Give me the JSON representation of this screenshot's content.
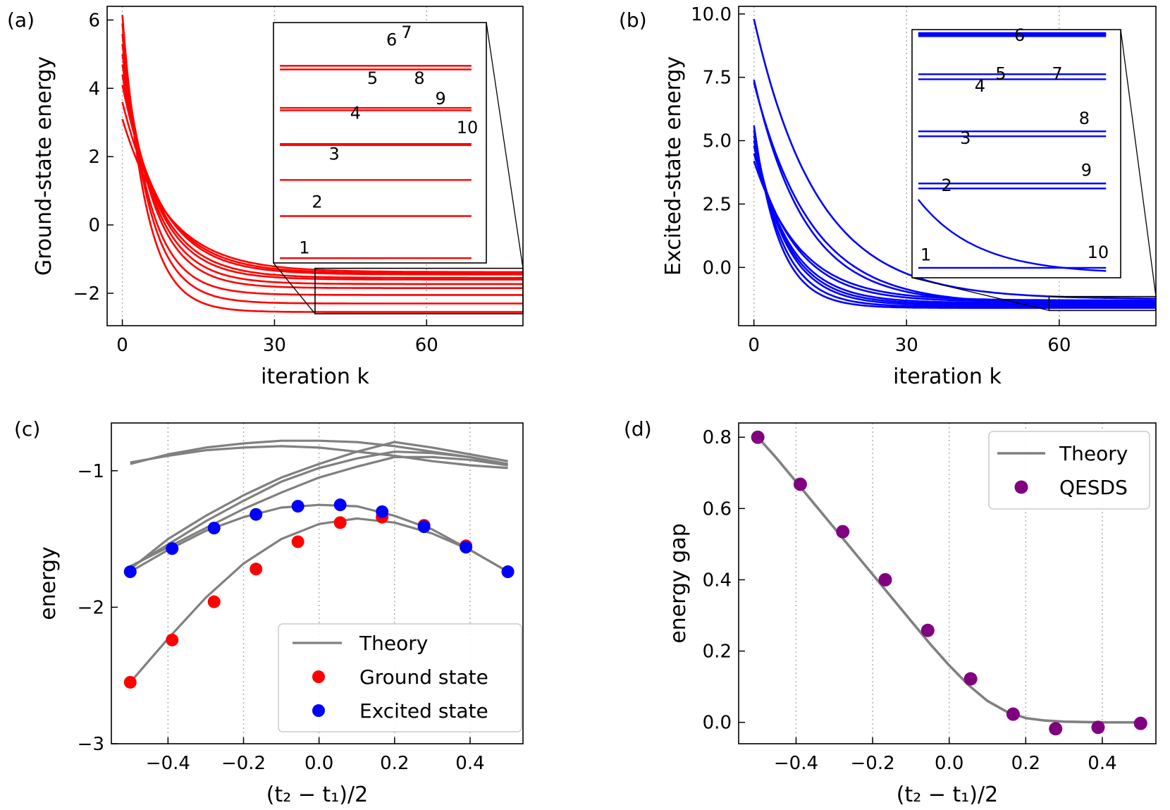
{
  "chart_data": [
    {
      "id": "a",
      "type": "line",
      "panel_label": "(a)",
      "xlabel": "iteration k",
      "ylabel": "Ground-state energy",
      "xlim": [
        -3,
        79
      ],
      "ylim": [
        -2.95,
        6.4
      ],
      "xticks": [
        0,
        30,
        60
      ],
      "xtick_labels": [
        "0",
        "30",
        "60"
      ],
      "yticks": [
        -2,
        0,
        2,
        4,
        6
      ],
      "ytick_labels": [
        "−2",
        "0",
        "2",
        "4",
        "6"
      ],
      "color": "#ff0000",
      "k_max": 79,
      "series": [
        {
          "name": "1",
          "start": 6.15,
          "final": -2.55,
          "rate": 0.22
        },
        {
          "name": "2",
          "start": 5.9,
          "final": -2.3,
          "rate": 0.2
        },
        {
          "name": "3",
          "start": 5.6,
          "final": -2.05,
          "rate": 0.19
        },
        {
          "name": "4",
          "start": 5.3,
          "final": -1.85,
          "rate": 0.17
        },
        {
          "name": "5",
          "start": 5.0,
          "final": -1.73,
          "rate": 0.16
        },
        {
          "name": "6",
          "start": 4.7,
          "final": -1.6,
          "rate": 0.15
        },
        {
          "name": "7",
          "start": 4.4,
          "final": -1.55,
          "rate": 0.14
        },
        {
          "name": "8",
          "start": 4.1,
          "final": -1.45,
          "rate": 0.13
        },
        {
          "name": "9",
          "start": 3.6,
          "final": -1.42,
          "rate": 0.12
        },
        {
          "name": "10",
          "start": 3.1,
          "final": -1.38,
          "rate": 0.11
        }
      ],
      "inset": {
        "line_levels": [
          0.82,
          0.805,
          0.645,
          0.635,
          0.495,
          0.49,
          0.345,
          0.195,
          0.02
        ],
        "labels": [
          "1",
          "2",
          "3",
          "4",
          "5",
          "6",
          "7",
          "8",
          "9",
          "10"
        ],
        "label_pos": [
          [
            0.12,
            0.04
          ],
          [
            0.18,
            0.23
          ],
          [
            0.26,
            0.43
          ],
          [
            0.36,
            0.6
          ],
          [
            0.44,
            0.745
          ],
          [
            0.53,
            0.905
          ],
          [
            0.6,
            0.935
          ],
          [
            0.66,
            0.745
          ],
          [
            0.76,
            0.66
          ],
          [
            0.86,
            0.54
          ]
        ]
      }
    },
    {
      "id": "b",
      "type": "line",
      "panel_label": "(b)",
      "xlabel": "iteration k",
      "ylabel": "Excited-state energy",
      "xlim": [
        -3,
        79
      ],
      "ylim": [
        -2.3,
        10.3
      ],
      "xticks": [
        0,
        30,
        60
      ],
      "xtick_labels": [
        "0",
        "30",
        "60"
      ],
      "yticks": [
        0.0,
        2.5,
        5.0,
        7.5,
        10.0
      ],
      "ytick_labels": [
        "0.0",
        "2.5",
        "5.0",
        "7.5",
        "10.0"
      ],
      "color": "#0000ff",
      "k_max": 79,
      "series": [
        {
          "name": "1",
          "start": 5.6,
          "final": -1.6,
          "rate": 0.2
        },
        {
          "name": "2",
          "start": 5.4,
          "final": -1.55,
          "rate": 0.18
        },
        {
          "name": "3",
          "start": 5.2,
          "final": -1.5,
          "rate": 0.16
        },
        {
          "name": "4",
          "start": 5.0,
          "final": -1.45,
          "rate": 0.15
        },
        {
          "name": "5",
          "start": 4.8,
          "final": -1.4,
          "rate": 0.14
        },
        {
          "name": "6",
          "start": 4.5,
          "final": -1.35,
          "rate": 0.12
        },
        {
          "name": "7",
          "start": 4.2,
          "final": -1.3,
          "rate": 0.11
        },
        {
          "name": "8",
          "start": 7.4,
          "final": -1.4,
          "rate": 0.1
        },
        {
          "name": "9",
          "start": 7.3,
          "final": -1.45,
          "rate": 0.09
        },
        {
          "name": "10",
          "start": 9.8,
          "final": -1.25,
          "rate": 0.08
        }
      ],
      "inset": {
        "line_levels": [
          0.985,
          0.98,
          0.975,
          0.82,
          0.8,
          0.59,
          0.57,
          0.38,
          0.36,
          0.04
        ],
        "labels": [
          "1",
          "2",
          "3",
          "4",
          "5",
          "6",
          "7",
          "8",
          "9",
          "10"
        ],
        "label_pos": [
          [
            0.04,
            0.07
          ],
          [
            0.14,
            0.35
          ],
          [
            0.23,
            0.54
          ],
          [
            0.3,
            0.75
          ],
          [
            0.4,
            0.8
          ],
          [
            0.49,
            0.955
          ],
          [
            0.67,
            0.8
          ],
          [
            0.8,
            0.62
          ],
          [
            0.81,
            0.41
          ],
          [
            0.84,
            0.08
          ]
        ]
      }
    },
    {
      "id": "c",
      "type": "line+scatter",
      "panel_label": "(c)",
      "xlabel": "(t₂ − t₁)/2",
      "ylabel": "energy",
      "xlim": [
        -0.55,
        0.54
      ],
      "ylim": [
        -3,
        -0.65
      ],
      "xticks": [
        -0.4,
        -0.2,
        0.0,
        0.2,
        0.4
      ],
      "xtick_labels": [
        "−0.4",
        "−0.2",
        "0.0",
        "0.2",
        "0.4"
      ],
      "yticks": [
        -3,
        -2,
        -1
      ],
      "ytick_labels": [
        "−3",
        "−2",
        "−1"
      ],
      "legend": [
        "Theory",
        "Ground state",
        "Excited state"
      ],
      "legend_position": "lower-right",
      "theory_x": [
        -0.5,
        -0.4,
        -0.3,
        -0.2,
        -0.1,
        0.0,
        0.1,
        0.2,
        0.3,
        0.4,
        0.5
      ],
      "theory_series": [
        {
          "name": "level-1",
          "y": [
            -2.55,
            -2.23,
            -1.93,
            -1.68,
            -1.5,
            -1.39,
            -1.35,
            -1.38,
            -1.46,
            -1.58,
            -1.74
          ]
        },
        {
          "name": "level-2",
          "y": [
            -1.74,
            -1.58,
            -1.44,
            -1.34,
            -1.27,
            -1.25,
            -1.26,
            -1.33,
            -1.43,
            -1.58,
            -1.74
          ]
        },
        {
          "name": "level-3",
          "y": [
            -1.72,
            -1.5,
            -1.33,
            -1.18,
            -1.05,
            -0.95,
            -0.86,
            -0.79,
            -0.83,
            -0.88,
            -0.93
          ]
        },
        {
          "name": "level-4",
          "y": [
            -1.71,
            -1.54,
            -1.37,
            -1.22,
            -1.08,
            -0.98,
            -0.91,
            -0.86,
            -0.87,
            -0.9,
            -0.95
          ]
        },
        {
          "name": "level-5",
          "y": [
            -1.7,
            -1.56,
            -1.42,
            -1.28,
            -1.16,
            -1.05,
            -0.97,
            -0.9,
            -0.9,
            -0.92,
            -0.96
          ]
        },
        {
          "name": "level-6",
          "y": [
            -0.95,
            -0.88,
            -0.83,
            -0.8,
            -0.78,
            -0.78,
            -0.79,
            -0.82,
            -0.86,
            -0.9,
            -0.96
          ]
        },
        {
          "name": "level-7",
          "y": [
            -0.94,
            -0.89,
            -0.85,
            -0.83,
            -0.82,
            -0.83,
            -0.86,
            -0.89,
            -0.93,
            -0.96,
            -0.98
          ]
        }
      ],
      "scatter_x": [
        -0.5,
        -0.389,
        -0.278,
        -0.167,
        -0.056,
        0.056,
        0.167,
        0.278,
        0.389,
        0.5
      ],
      "ground_state": [
        -2.55,
        -2.24,
        -1.96,
        -1.72,
        -1.52,
        -1.38,
        -1.34,
        -1.4,
        -1.55,
        -1.74
      ],
      "excited_state": [
        -1.74,
        -1.57,
        -1.42,
        -1.32,
        -1.26,
        -1.25,
        -1.3,
        -1.41,
        -1.56,
        -1.74
      ],
      "colors": {
        "theory": "#808080",
        "ground": "#ff0000",
        "excited": "#0000ff"
      }
    },
    {
      "id": "d",
      "type": "line+scatter",
      "panel_label": "(d)",
      "xlabel": "(t₂ − t₁)/2",
      "ylabel": "energy gap",
      "xlim": [
        -0.55,
        0.54
      ],
      "ylim": [
        -0.06,
        0.84
      ],
      "xticks": [
        -0.4,
        -0.2,
        0.0,
        0.2,
        0.4
      ],
      "xtick_labels": [
        "−0.4",
        "−0.2",
        "0.0",
        "0.2",
        "0.4"
      ],
      "yticks": [
        0.0,
        0.2,
        0.4,
        0.6,
        0.8
      ],
      "ytick_labels": [
        "0.0",
        "0.2",
        "0.4",
        "0.6",
        "0.8"
      ],
      "legend": [
        "Theory",
        "QESDS"
      ],
      "legend_position": "upper-right",
      "theory_x": [
        -0.5,
        -0.45,
        -0.4,
        -0.35,
        -0.3,
        -0.25,
        -0.2,
        -0.15,
        -0.1,
        -0.05,
        0.0,
        0.05,
        0.1,
        0.15,
        0.2,
        0.25,
        0.3,
        0.35,
        0.4,
        0.45,
        0.5
      ],
      "theory_y": [
        0.8,
        0.74,
        0.675,
        0.61,
        0.545,
        0.48,
        0.415,
        0.35,
        0.285,
        0.22,
        0.16,
        0.105,
        0.06,
        0.03,
        0.012,
        0.005,
        0.002,
        0.001,
        0.0,
        0.0,
        0.0
      ],
      "scatter_x": [
        -0.5,
        -0.389,
        -0.278,
        -0.167,
        -0.056,
        0.056,
        0.167,
        0.278,
        0.389,
        0.5
      ],
      "qesds": [
        0.8,
        0.668,
        0.535,
        0.4,
        0.258,
        0.122,
        0.023,
        -0.018,
        -0.014,
        -0.003
      ],
      "colors": {
        "theory": "#808080",
        "qesds": "#800080"
      }
    }
  ]
}
